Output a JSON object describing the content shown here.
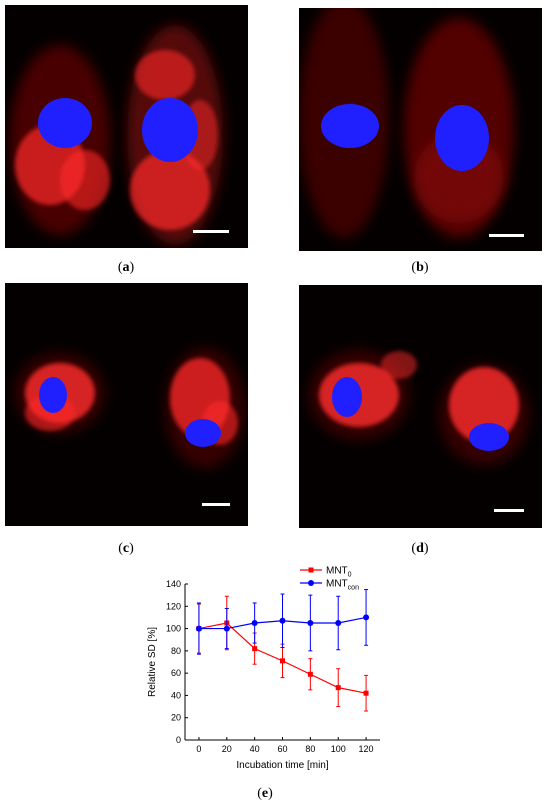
{
  "figure": {
    "panels": [
      {
        "label": "a"
      },
      {
        "label": "b"
      },
      {
        "label": "c"
      },
      {
        "label": "d"
      },
      {
        "label": "e"
      }
    ],
    "colors": {
      "nucleus": "#1f22ff",
      "mitochondria": "#e01010",
      "background": "#050000"
    }
  },
  "chart_data": {
    "type": "line",
    "title": "",
    "xlabel": "Incubation time [min]",
    "ylabel": "Relative SD [%]",
    "x": [
      0,
      20,
      40,
      60,
      80,
      100,
      120
    ],
    "xticks": [
      "0",
      "20",
      "40",
      "60",
      "80",
      "100",
      "120"
    ],
    "yticks": [
      "0",
      "20",
      "40",
      "60",
      "80",
      "100",
      "120",
      "140"
    ],
    "xlim": [
      -10,
      130
    ],
    "ylim": [
      0,
      140
    ],
    "legend_position": "top-right",
    "series": [
      {
        "name": "MNT",
        "name_sub": "0",
        "color": "#ff0000",
        "marker": "square",
        "values": [
          100,
          105,
          82,
          71,
          59,
          47,
          42
        ],
        "errors": [
          22,
          24,
          14,
          15,
          14,
          17,
          16
        ]
      },
      {
        "name": "MNT",
        "name_sub": "con",
        "color": "#0000ff",
        "marker": "circle",
        "values": [
          100,
          100,
          105,
          107,
          105,
          105,
          110
        ],
        "errors": [
          23,
          18,
          18,
          24,
          25,
          24,
          25
        ]
      }
    ]
  }
}
